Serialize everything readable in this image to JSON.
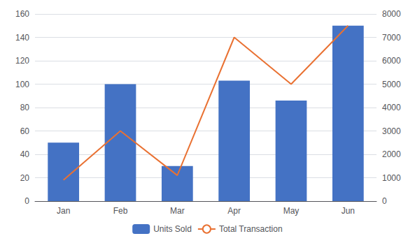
{
  "chart_data": {
    "type": "bar",
    "categories": [
      "Jan",
      "Feb",
      "Mar",
      "Apr",
      "May",
      "Jun"
    ],
    "series": [
      {
        "name": "Units Sold",
        "type": "bar",
        "color": "#4472C4",
        "values": [
          50,
          100,
          30,
          103,
          86,
          150
        ]
      },
      {
        "name": "Total Transaction",
        "type": "line",
        "color": "#E97132",
        "axis": "y2",
        "values": [
          900,
          3000,
          1100,
          7000,
          5000,
          7500
        ]
      }
    ],
    "ylim": [
      0,
      160
    ],
    "yticks": [
      0,
      20,
      40,
      60,
      80,
      100,
      120,
      140,
      160
    ],
    "y2lim": [
      0,
      8000
    ],
    "y2ticks": [
      0,
      1000,
      2000,
      3000,
      4000,
      5000,
      6000,
      7000,
      8000
    ],
    "grid": true,
    "legend": "bottom"
  }
}
